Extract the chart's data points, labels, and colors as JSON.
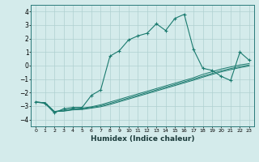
{
  "xlabel": "Humidex (Indice chaleur)",
  "ylabel": "",
  "background_color": "#d4ebeb",
  "grid_color": "#afd0d0",
  "line_color": "#1a7a6e",
  "xlim": [
    -0.5,
    23.5
  ],
  "ylim": [
    -4.5,
    4.5
  ],
  "xticks": [
    0,
    1,
    2,
    3,
    4,
    5,
    6,
    7,
    8,
    9,
    10,
    11,
    12,
    13,
    14,
    15,
    16,
    17,
    18,
    19,
    20,
    21,
    22,
    23
  ],
  "yticks": [
    -4,
    -3,
    -2,
    -1,
    0,
    1,
    2,
    3,
    4
  ],
  "main_line_x": [
    0,
    1,
    2,
    3,
    4,
    5,
    6,
    7,
    8,
    9,
    10,
    11,
    12,
    13,
    14,
    15,
    16,
    17,
    18,
    19,
    20,
    21,
    22,
    23
  ],
  "main_line_y": [
    -2.7,
    -2.8,
    -3.5,
    -3.2,
    -3.1,
    -3.1,
    -2.2,
    -1.8,
    0.7,
    1.1,
    1.9,
    2.2,
    2.4,
    3.1,
    2.6,
    3.5,
    3.8,
    1.2,
    -0.2,
    -0.35,
    -0.8,
    -1.1,
    1.0,
    0.4
  ],
  "line2_x": [
    0,
    1,
    2,
    3,
    4,
    5,
    6,
    7,
    8,
    9,
    10,
    11,
    12,
    13,
    14,
    15,
    16,
    17,
    18,
    19,
    20,
    21,
    22,
    23
  ],
  "line2_y": [
    -2.7,
    -2.75,
    -3.4,
    -3.3,
    -3.2,
    -3.15,
    -3.05,
    -2.9,
    -2.7,
    -2.5,
    -2.3,
    -2.1,
    -1.9,
    -1.7,
    -1.5,
    -1.3,
    -1.1,
    -0.9,
    -0.65,
    -0.45,
    -0.25,
    -0.1,
    0.05,
    0.15
  ],
  "line3_x": [
    0,
    1,
    2,
    3,
    4,
    5,
    6,
    7,
    8,
    9,
    10,
    11,
    12,
    13,
    14,
    15,
    16,
    17,
    18,
    19,
    20,
    21,
    22,
    23
  ],
  "line3_y": [
    -2.7,
    -2.75,
    -3.4,
    -3.35,
    -3.25,
    -3.2,
    -3.1,
    -2.98,
    -2.8,
    -2.6,
    -2.4,
    -2.2,
    -2.0,
    -1.8,
    -1.6,
    -1.4,
    -1.2,
    -1.0,
    -0.78,
    -0.58,
    -0.38,
    -0.22,
    -0.07,
    0.05
  ],
  "line4_x": [
    0,
    1,
    2,
    3,
    4,
    5,
    6,
    7,
    8,
    9,
    10,
    11,
    12,
    13,
    14,
    15,
    16,
    17,
    18,
    19,
    20,
    21,
    22,
    23
  ],
  "line4_y": [
    -2.7,
    -2.75,
    -3.4,
    -3.38,
    -3.28,
    -3.25,
    -3.15,
    -3.05,
    -2.88,
    -2.68,
    -2.48,
    -2.28,
    -2.08,
    -1.88,
    -1.68,
    -1.48,
    -1.28,
    -1.08,
    -0.86,
    -0.66,
    -0.46,
    -0.3,
    -0.15,
    -0.03
  ]
}
